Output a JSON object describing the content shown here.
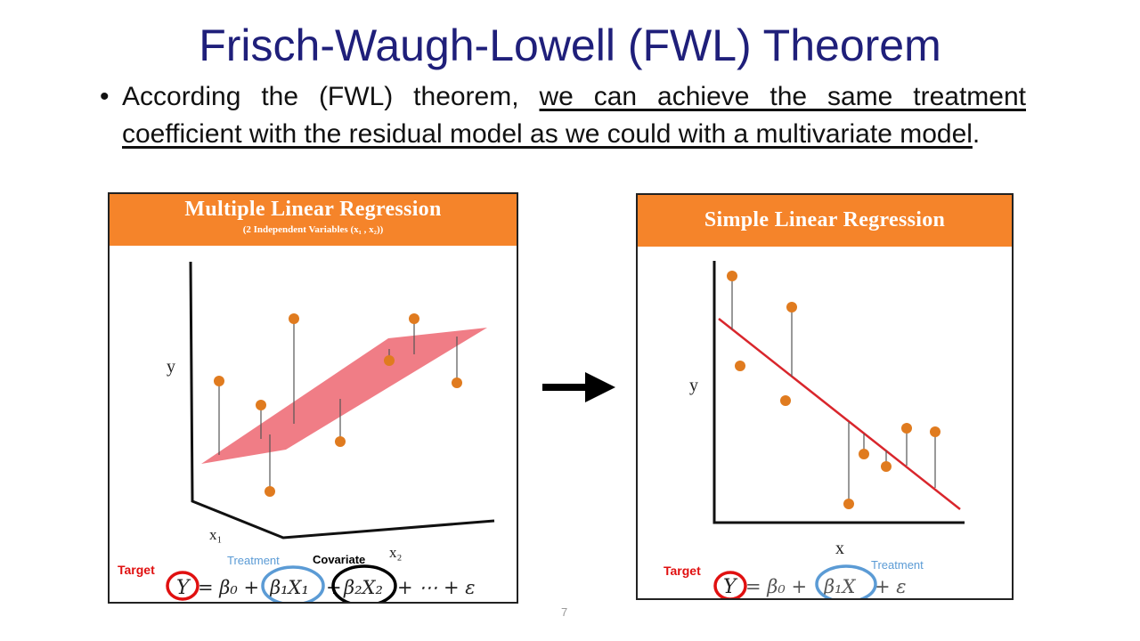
{
  "slide": {
    "title": "Frisch-Waugh-Lowell (FWL) Theorem",
    "bullet_lead": "According the (FWL) theorem, ",
    "bullet_underlined": "we can achieve the same treatment coefficient with the residual model as we could with a multivariate model",
    "bullet_tail": ".",
    "page_number": "7"
  },
  "left_panel": {
    "title": "Multiple Linear Regression",
    "subtitle": "(2 Independent Variables (x₁ , x₂))",
    "axis_y": "y",
    "axis_x1": "x₁",
    "axis_x2": "x₂",
    "label_target": "Target",
    "label_treatment": "Treatment",
    "label_covariate": "Covariate",
    "eq_y": "Y",
    "eq_eq_b0": "= β₀ +",
    "eq_b1x1": "β₁X₁",
    "eq_plus": "+",
    "eq_b2x2": "β₂X₂",
    "eq_tail": "+ ⋯ + ε"
  },
  "right_panel": {
    "title": "Simple Linear Regression",
    "axis_y": "y",
    "axis_x": "x",
    "label_target": "Target",
    "label_treatment": "Treatment",
    "eq_y": "Y",
    "eq_eq_b0": "=  β₀ +",
    "eq_b1x": "β₁X",
    "eq_tail": "+ ε"
  },
  "colors": {
    "title": "#1f1f7a",
    "header_orange": "#f5842a",
    "point_orange": "#e07b1f",
    "plane_red": "#ee6b75",
    "line_red": "#d9262c",
    "target_red": "#e01010",
    "treatment_blue": "#5b9bd5",
    "covariate_black": "#000000"
  },
  "icons": {
    "arrow": "right-arrow-icon"
  }
}
